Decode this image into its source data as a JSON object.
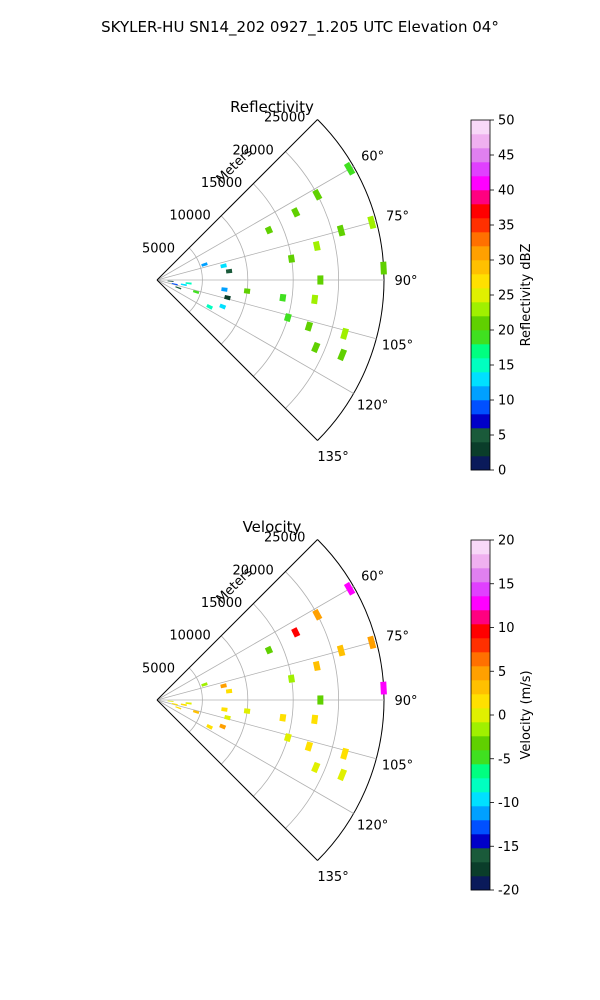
{
  "figure_title": "SKYLER-HU  SN14_202  0927_1.205 UTC Elevation 04°",
  "chart_data": [
    {
      "type": "polar-sector",
      "title": "Reflectivity",
      "radial_label": "Meters",
      "radial_ticks": [
        5000,
        10000,
        15000,
        20000,
        25000
      ],
      "rmax": 25000,
      "theta_range_deg": [
        45,
        135
      ],
      "angle_ticks": [
        60,
        75,
        90,
        105,
        120,
        135
      ],
      "angle_tick_labels": [
        "60°",
        "75°",
        "90°",
        "105°",
        "120°",
        "135°"
      ],
      "grid": true,
      "colorbar": {
        "label": "Reflectivity dBZ",
        "min": 0,
        "max": 50,
        "ticks": [
          0,
          5,
          10,
          15,
          20,
          25,
          30,
          35,
          40,
          45,
          50
        ],
        "colors": [
          "#0a1a5a",
          "#0a3d2a",
          "#1a5a3a",
          "#0000c8",
          "#0050ff",
          "#00a0ff",
          "#00e0ff",
          "#00ffc0",
          "#00ff80",
          "#40e020",
          "#60d000",
          "#a0f000",
          "#e0f000",
          "#ffe000",
          "#ffc000",
          "#ffa000",
          "#ff7000",
          "#ff3000",
          "#ff0000",
          "#ff0080",
          "#ff00ff",
          "#e040ff",
          "#e080f0",
          "#f0b0f0",
          "#f8d8f8"
        ]
      },
      "cells": [
        {
          "r": 2000,
          "theta": 103,
          "v": 8
        },
        {
          "r": 1500,
          "theta": 95,
          "v": 3
        },
        {
          "r": 2500,
          "theta": 110,
          "v": 5
        },
        {
          "r": 3000,
          "theta": 100,
          "v": 12
        },
        {
          "r": 3500,
          "theta": 96,
          "v": 15
        },
        {
          "r": 4500,
          "theta": 107,
          "v": 18
        },
        {
          "r": 5500,
          "theta": 72,
          "v": 10
        },
        {
          "r": 7500,
          "theta": 78,
          "v": 12
        },
        {
          "r": 8000,
          "theta": 83,
          "v": 5
        },
        {
          "r": 7500,
          "theta": 98,
          "v": 10
        },
        {
          "r": 8000,
          "theta": 104,
          "v": 3
        },
        {
          "r": 7800,
          "theta": 112,
          "v": 12
        },
        {
          "r": 6500,
          "theta": 117,
          "v": 15
        },
        {
          "r": 10000,
          "theta": 97,
          "v": 20
        },
        {
          "r": 13500,
          "theta": 66,
          "v": 20
        },
        {
          "r": 15000,
          "theta": 81,
          "v": 20
        },
        {
          "r": 14000,
          "theta": 98,
          "v": 18
        },
        {
          "r": 15000,
          "theta": 106,
          "v": 18
        },
        {
          "r": 17000,
          "theta": 64,
          "v": 20
        },
        {
          "r": 18000,
          "theta": 78,
          "v": 22
        },
        {
          "r": 18000,
          "theta": 90,
          "v": 20
        },
        {
          "r": 17500,
          "theta": 97,
          "v": 22
        },
        {
          "r": 17500,
          "theta": 107,
          "v": 20
        },
        {
          "r": 19000,
          "theta": 113,
          "v": 20
        },
        {
          "r": 20000,
          "theta": 62,
          "v": 20
        },
        {
          "r": 21500,
          "theta": 106,
          "v": 22
        },
        {
          "r": 22000,
          "theta": 112,
          "v": 20
        },
        {
          "r": 21000,
          "theta": 75,
          "v": 20
        },
        {
          "r": 24500,
          "theta": 75,
          "v": 22
        },
        {
          "r": 24500,
          "theta": 60,
          "v": 18
        },
        {
          "r": 25000,
          "theta": 87,
          "v": 20
        }
      ]
    },
    {
      "type": "polar-sector",
      "title": "Velocity",
      "radial_label": "Meters",
      "radial_ticks": [
        5000,
        10000,
        15000,
        20000,
        25000
      ],
      "rmax": 25000,
      "theta_range_deg": [
        45,
        135
      ],
      "angle_ticks": [
        60,
        75,
        90,
        105,
        120,
        135
      ],
      "angle_tick_labels": [
        "60°",
        "75°",
        "90°",
        "105°",
        "120°",
        "135°"
      ],
      "grid": true,
      "colorbar": {
        "label": "Velocity (m/s)",
        "min": -20,
        "max": 20,
        "ticks": [
          -20,
          -15,
          -10,
          -5,
          0,
          5,
          10,
          15,
          20
        ],
        "colors": [
          "#0a1a5a",
          "#0a3d2a",
          "#1a5a3a",
          "#0000c8",
          "#0050ff",
          "#00a0ff",
          "#00e0ff",
          "#00ffc0",
          "#00ff80",
          "#40e020",
          "#60d000",
          "#a0f000",
          "#e0f000",
          "#ffe000",
          "#ffc000",
          "#ffa000",
          "#ff7000",
          "#ff3000",
          "#ff0000",
          "#ff0080",
          "#ff00ff",
          "#e040ff",
          "#e080f0",
          "#f0b0f0",
          "#f8d8f8"
        ]
      },
      "cells": [
        {
          "r": 2000,
          "theta": 103,
          "v": 1
        },
        {
          "r": 1500,
          "theta": 95,
          "v": 0
        },
        {
          "r": 2500,
          "theta": 110,
          "v": 1
        },
        {
          "r": 3000,
          "theta": 100,
          "v": 2
        },
        {
          "r": 3500,
          "theta": 96,
          "v": 0
        },
        {
          "r": 4500,
          "theta": 107,
          "v": 3
        },
        {
          "r": 5500,
          "theta": 72,
          "v": -2
        },
        {
          "r": 7500,
          "theta": 78,
          "v": 4
        },
        {
          "r": 8000,
          "theta": 83,
          "v": 1
        },
        {
          "r": 7500,
          "theta": 98,
          "v": 1
        },
        {
          "r": 8000,
          "theta": 104,
          "v": 0
        },
        {
          "r": 7800,
          "theta": 112,
          "v": 4
        },
        {
          "r": 6500,
          "theta": 117,
          "v": 2
        },
        {
          "r": 10000,
          "theta": 97,
          "v": 0
        },
        {
          "r": 13500,
          "theta": 66,
          "v": -3
        },
        {
          "r": 15000,
          "theta": 81,
          "v": -2
        },
        {
          "r": 14000,
          "theta": 98,
          "v": 1
        },
        {
          "r": 15000,
          "theta": 106,
          "v": 0
        },
        {
          "r": 17000,
          "theta": 64,
          "v": 10
        },
        {
          "r": 18000,
          "theta": 78,
          "v": 3
        },
        {
          "r": 18000,
          "theta": 90,
          "v": -3
        },
        {
          "r": 17500,
          "theta": 97,
          "v": 2
        },
        {
          "r": 17500,
          "theta": 107,
          "v": 1
        },
        {
          "r": 19000,
          "theta": 113,
          "v": 0
        },
        {
          "r": 20000,
          "theta": 62,
          "v": 4
        },
        {
          "r": 21500,
          "theta": 106,
          "v": 2
        },
        {
          "r": 22000,
          "theta": 112,
          "v": 0
        },
        {
          "r": 21000,
          "theta": 75,
          "v": 3
        },
        {
          "r": 24500,
          "theta": 75,
          "v": 4
        },
        {
          "r": 24500,
          "theta": 60,
          "v": 12
        },
        {
          "r": 25000,
          "theta": 87,
          "v": 13
        }
      ]
    }
  ]
}
